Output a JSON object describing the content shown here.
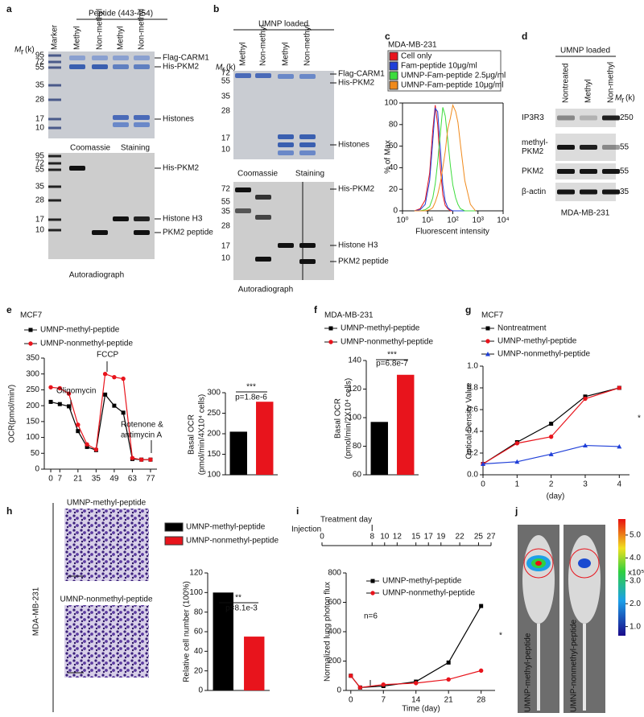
{
  "panel_labels": [
    "a",
    "b",
    "c",
    "d",
    "e",
    "f",
    "g",
    "h",
    "i",
    "j"
  ],
  "gels": {
    "a": {
      "header": "Peptide (443-454)",
      "lanes": [
        "Marker",
        "Methyl",
        "Non-methyl",
        "Methyl",
        "Non-methyl"
      ],
      "mr": {
        "main": "M",
        "sub": "r",
        "unit": "(k)"
      },
      "top_markers": [
        95,
        72,
        55,
        35,
        28,
        17,
        10
      ],
      "top_bands": [
        "Flag-CARM1",
        "His-PKM2",
        "Histones"
      ],
      "top_caption": [
        "Coomassie",
        "Staining"
      ],
      "bottom_markers": [
        95,
        72,
        55,
        35,
        28,
        17,
        10
      ],
      "bottom_bands": [
        "His-PKM2",
        "Histone H3",
        "PKM2 peptide"
      ],
      "bottom_caption": [
        "Autoradiograph"
      ]
    },
    "b": {
      "header": "UMNP loaded",
      "lanes": [
        "Methyl",
        "Non-methyl",
        "Methyl",
        "Non-methyl"
      ],
      "mr": {
        "main": "M",
        "sub": "r",
        "unit": "(k)"
      },
      "top_markers": [
        72,
        55,
        35,
        28,
        17,
        10
      ],
      "top_bands": [
        "Flag-CARM1",
        "His-PKM2",
        "Histones"
      ],
      "top_caption": [
        "Coomassie",
        "Staining"
      ],
      "bottom_markers": [
        72,
        55,
        35,
        28,
        17,
        10
      ],
      "bottom_bands": [
        "His-PKM2",
        "Histone H3",
        "PKM2 peptide"
      ],
      "bottom_caption": [
        "Autoradiograph"
      ]
    },
    "d": {
      "header": "UMNP loaded",
      "lanes": [
        "Nontreated",
        "Methyl",
        "Non-methyl"
      ],
      "mr": {
        "main": "M",
        "sub": "r",
        "unit": "(k)"
      },
      "rows": [
        {
          "name": [
            "IP3R3"
          ],
          "marker": 250
        },
        {
          "name": [
            "methyl-",
            "PKM2"
          ],
          "marker": 55
        },
        {
          "name": [
            "PKM2"
          ],
          "marker": 55
        },
        {
          "name": [
            "β-actin"
          ],
          "marker": 35
        }
      ],
      "caption": "MDA-MB-231"
    }
  },
  "images": {
    "h": {
      "titles": [
        "UMNP-methyl-peptide",
        "UMNP-nonmethyl-peptide"
      ],
      "side": "MDA-MB-231"
    },
    "j": {
      "titles": [
        "UMNP-methyl-peptide",
        "UMNP-nonmethyl-peptide"
      ],
      "colorbar_lim": [
        0.6,
        5.7
      ],
      "colorbar_ticks": [
        {
          "value": 1,
          "label": "1.0"
        },
        {
          "value": 2,
          "label": "2.0"
        },
        {
          "value": 3,
          "label": "3.0"
        },
        {
          "value": 4,
          "label": "4.0"
        },
        {
          "value": 5,
          "label": "5.0"
        }
      ],
      "colorbar_unit": "x10⁵"
    }
  },
  "timeline": {
    "start_label": "Injection",
    "treatment_label": "Treatment day",
    "lim": [
      0,
      27
    ],
    "ticks": [
      0,
      8,
      10,
      12,
      15,
      17,
      19,
      22,
      25,
      27
    ]
  },
  "chart_data": [
    {
      "type": "line",
      "title": "MDA-MB-231",
      "xscale": "log",
      "frame": true,
      "legend_style": "box",
      "x": [
        3,
        5,
        8,
        12,
        16,
        20,
        25,
        32,
        40,
        50,
        63,
        80,
        100,
        130,
        160,
        200,
        300,
        500,
        800
      ],
      "xlim": [
        1,
        10000
      ],
      "xticks": [
        {
          "value": 1,
          "label": "10⁰"
        },
        {
          "value": 10,
          "label": "10¹"
        },
        {
          "value": 100,
          "label": "10²"
        },
        {
          "value": 1000,
          "label": "10³"
        },
        {
          "value": 10000,
          "label": "10⁴"
        }
      ],
      "ylim": [
        0,
        100
      ],
      "yticks": [
        0,
        20,
        40,
        60,
        80,
        100
      ],
      "xlabel": "Fluorescent  intensity",
      "ylabel": [
        "% of Max"
      ],
      "series": [
        {
          "name": "Cell only",
          "color": "#e8141c",
          "values": [
            0,
            2,
            10,
            35,
            75,
            98,
            80,
            40,
            15,
            5,
            2,
            0,
            0,
            0,
            0,
            0,
            0,
            0,
            0
          ]
        },
        {
          "name": "Fam-peptide 10μg/ml",
          "color": "#1f3fd8",
          "values": [
            0,
            1,
            6,
            28,
            65,
            95,
            92,
            58,
            24,
            9,
            3,
            1,
            0,
            0,
            0,
            0,
            0,
            0,
            0
          ]
        },
        {
          "name": "UMNP-Fam-peptide 2.5μg/ml",
          "color": "#3cdc3c",
          "values": [
            0,
            0,
            1,
            4,
            12,
            25,
            45,
            72,
            96,
            88,
            66,
            42,
            24,
            12,
            6,
            2,
            0,
            0,
            0
          ]
        },
        {
          "name": "UMNP-Fam-peptide 10μg/ml",
          "color": "#f08a1c",
          "values": [
            0,
            0,
            0,
            1,
            3,
            8,
            15,
            26,
            40,
            55,
            76,
            86,
            98,
            92,
            82,
            62,
            28,
            6,
            0
          ]
        }
      ]
    },
    {
      "type": "line",
      "title": "MCF7",
      "x": [
        0,
        7,
        14,
        21,
        28,
        35,
        42,
        49,
        56,
        63,
        70,
        77
      ],
      "xlim": [
        -5,
        82
      ],
      "xticks": [
        0,
        7,
        21,
        35,
        49,
        63,
        77
      ],
      "ylim": [
        0,
        350
      ],
      "yticks": [
        0,
        50,
        100,
        150,
        200,
        250,
        300,
        350
      ],
      "ylabel": [
        "OCR(pmol/min/)"
      ],
      "annotations": [
        "Oligomycin",
        "FCCP",
        "Rotenone &",
        "antimycin A"
      ],
      "series": [
        {
          "name": "UMNP-methyl-peptide",
          "color": "#000000",
          "marker": "square",
          "values": [
            212,
            205,
            198,
            120,
            70,
            60,
            235,
            200,
            178,
            32,
            30,
            30
          ]
        },
        {
          "name": "UMNP-nonmethyl-peptide",
          "color": "#e8141c",
          "marker": "circle",
          "values": [
            258,
            255,
            238,
            140,
            78,
            62,
            300,
            290,
            285,
            35,
            30,
            30
          ]
        }
      ]
    },
    {
      "type": "bar",
      "values": [
        205,
        278
      ],
      "colors": [
        "#000000",
        "#e8141c"
      ],
      "ylim": [
        100,
        300
      ],
      "yticks": [
        100,
        150,
        200,
        250,
        300
      ],
      "ylabel": [
        "Basal OCR",
        "(pmol/min/4X10⁴ cells)"
      ],
      "annotations": [
        "***",
        "p=1.8e-6"
      ]
    },
    {
      "type": "bar",
      "title": "MDA-MB-231",
      "legend_style": "line",
      "series": [
        {
          "name": "UMNP-methyl-peptide",
          "color": "#000000",
          "marker": "square",
          "values": [
            97
          ]
        },
        {
          "name": "UMNP-nonmethyl-peptide",
          "color": "#e8141c",
          "marker": "circle",
          "values": [
            130
          ]
        }
      ],
      "ylim": [
        60,
        140
      ],
      "yticks": [
        60,
        80,
        100,
        120,
        140
      ],
      "ylabel": [
        "Basal OCR",
        "(pmol/min/2X10⁴ cells)"
      ],
      "annotations": [
        "***",
        "p=6.8e-7"
      ]
    },
    {
      "type": "line",
      "title": "MCF7",
      "x": [
        0,
        1,
        2,
        3,
        4
      ],
      "xlim": [
        0,
        4.3
      ],
      "xticks": [
        0,
        1,
        2,
        3,
        4
      ],
      "ylim": [
        0,
        1.0
      ],
      "yticks": [
        {
          "value": 0,
          "label": "0.0"
        },
        0.2,
        0.4,
        0.6,
        0.8,
        {
          "value": 1,
          "label": "1.0"
        }
      ],
      "xlabel": "(day)",
      "ylabel": [
        "Optical Density  Value"
      ],
      "annotations": [
        "*"
      ],
      "series": [
        {
          "name": "Nontreatment",
          "color": "#000000",
          "marker": "square",
          "values": [
            0.1,
            0.3,
            0.47,
            0.72,
            0.8
          ]
        },
        {
          "name": "UMNP-methyl-peptide",
          "color": "#e8141c",
          "marker": "circle",
          "values": [
            0.1,
            0.29,
            0.35,
            0.7,
            0.8
          ]
        },
        {
          "name": "UMNP-nonmethyl-peptide",
          "color": "#1f3fd8",
          "marker": "triangle",
          "values": [
            0.1,
            0.12,
            0.19,
            0.27,
            0.26
          ]
        }
      ]
    },
    {
      "type": "bar",
      "legend_style": "swatch",
      "series": [
        {
          "name": "UMNP-methyl-peptide",
          "color": "#000000",
          "values": [
            100
          ]
        },
        {
          "name": "UMNP-nonmethyl-peptide",
          "color": "#e8141c",
          "values": [
            55
          ]
        }
      ],
      "ylim": [
        0,
        120
      ],
      "yticks": [
        0,
        20,
        40,
        60,
        80,
        100,
        120
      ],
      "ylabel": [
        "Relative cell number (100%)"
      ],
      "annotations": [
        "**",
        "p=8.1e-3"
      ]
    },
    {
      "type": "line",
      "x": [
        0,
        2,
        7,
        14,
        21,
        28
      ],
      "xlim": [
        -1,
        31
      ],
      "xticks": [
        0,
        7,
        14,
        21,
        28
      ],
      "ylim": [
        0,
        800
      ],
      "yticks": [
        0,
        200,
        400,
        600,
        800
      ],
      "xlabel": "Time (day)",
      "ylabel": [
        "Normalized lung photon flux"
      ],
      "annotations": [
        "n=6",
        "*"
      ],
      "series": [
        {
          "name": "UMNP-methyl-peptide",
          "color": "#000000",
          "marker": "square",
          "values": [
            100,
            20,
            30,
            60,
            190,
            575
          ]
        },
        {
          "name": "UMNP-nonmethyl-peptide",
          "color": "#e8141c",
          "marker": "circle",
          "values": [
            100,
            20,
            40,
            50,
            75,
            135
          ]
        }
      ]
    }
  ]
}
